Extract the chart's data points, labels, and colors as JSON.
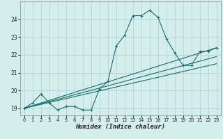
{
  "xlabel": "Humidex (Indice chaleur)",
  "bg_color": "#d4eeee",
  "grid_color": "#b8d8d8",
  "line_color": "#1a6b6b",
  "xlim": [
    -0.5,
    23.5
  ],
  "ylim": [
    18.6,
    25.0
  ],
  "yticks": [
    19,
    20,
    21,
    22,
    23,
    24
  ],
  "xticks": [
    0,
    1,
    2,
    3,
    4,
    5,
    6,
    7,
    8,
    9,
    10,
    11,
    12,
    13,
    14,
    15,
    16,
    17,
    18,
    19,
    20,
    21,
    22,
    23
  ],
  "line1_x": [
    0,
    1,
    2,
    3,
    4,
    5,
    6,
    7,
    8,
    9,
    10,
    11,
    12,
    13,
    14,
    15,
    16,
    17,
    18,
    19,
    20,
    21,
    22,
    23
  ],
  "line1_y": [
    19.0,
    19.3,
    19.8,
    19.3,
    18.9,
    19.1,
    19.1,
    18.9,
    18.9,
    20.1,
    20.5,
    22.5,
    23.1,
    24.2,
    24.2,
    24.5,
    24.1,
    22.9,
    22.1,
    21.4,
    21.4,
    22.2,
    22.2,
    22.4
  ],
  "line2_x": [
    0,
    23
  ],
  "line2_y": [
    19.0,
    22.4
  ],
  "line3_x": [
    0,
    23
  ],
  "line3_y": [
    19.0,
    21.5
  ],
  "line4_x": [
    0,
    23
  ],
  "line4_y": [
    19.0,
    21.9
  ]
}
